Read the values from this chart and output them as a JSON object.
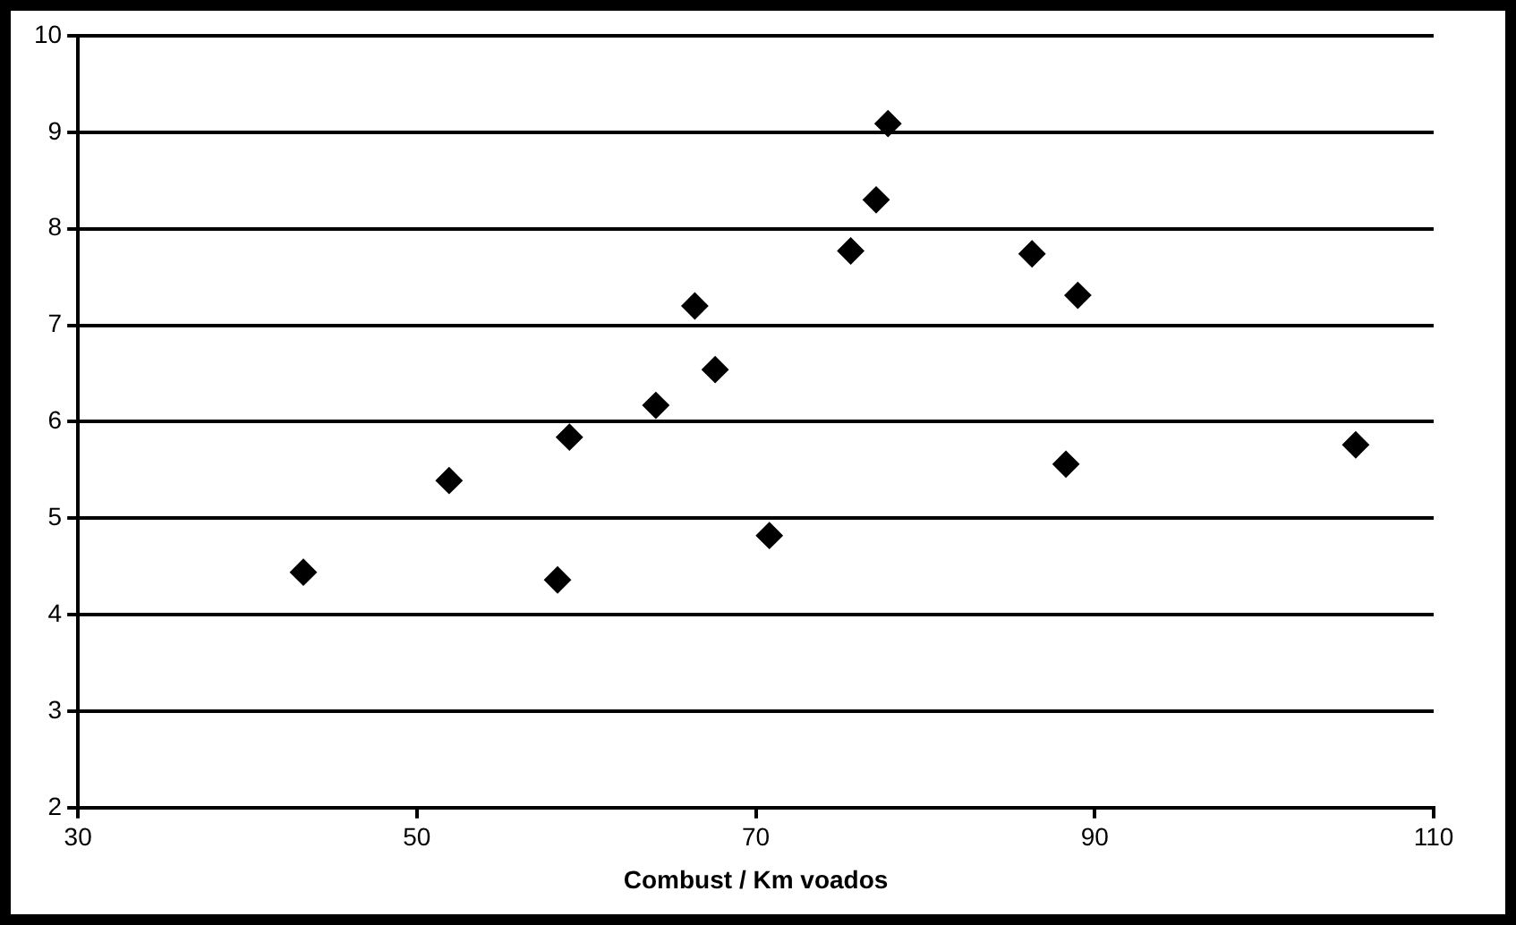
{
  "chart_data": {
    "type": "scatter",
    "xlabel": "Combust / Km voados",
    "x": [
      43.3,
      51.9,
      58.3,
      59.0,
      64.1,
      66.4,
      67.6,
      70.8,
      75.6,
      77.1,
      77.8,
      86.3,
      89.0,
      88.3,
      105.4
    ],
    "values": [
      4.44,
      5.39,
      4.36,
      5.84,
      6.17,
      7.2,
      6.54,
      4.82,
      7.77,
      8.3,
      9.09,
      7.74,
      7.31,
      5.56,
      5.76
    ],
    "color": "#000000",
    "marker": "diamond",
    "xlim": [
      30,
      110
    ],
    "xticks": [
      30,
      50,
      70,
      90,
      110
    ],
    "ylim": [
      2,
      10
    ],
    "yticks": [
      2,
      3,
      4,
      5,
      6,
      7,
      8,
      9,
      10
    ],
    "grid": "y",
    "legend": false
  }
}
